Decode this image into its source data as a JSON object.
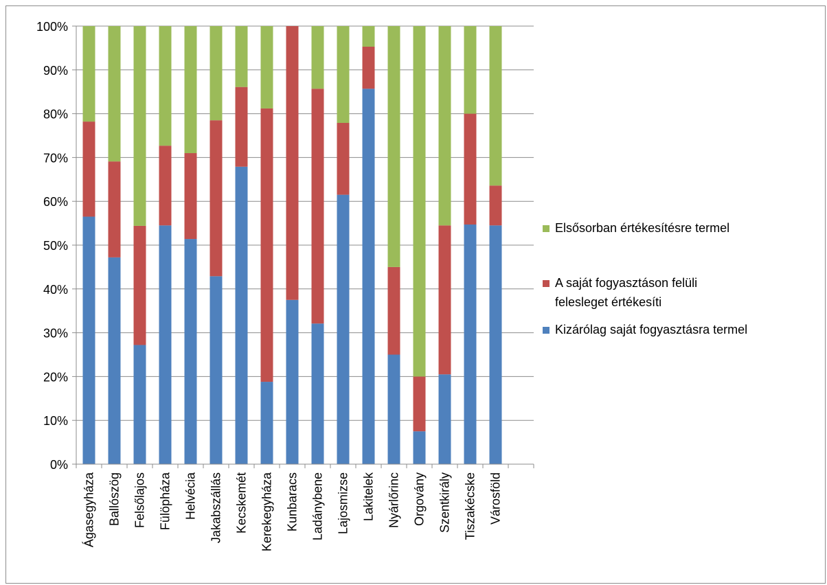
{
  "chart_data": {
    "type": "bar",
    "stacked": true,
    "percent": true,
    "categories": [
      "Ágasegyháza",
      "Ballószög",
      "Felsőlajos",
      "Fülöpháza",
      "Helvécia",
      "Jakabszállás",
      "Kecskemét",
      "Kerekegyháza",
      "Kunbaracs",
      "Ladánybene",
      "Lajosmizse",
      "Lakitelek",
      "Nyárlőrinc",
      "Orgovány",
      "Szentkirály",
      "Tiszakécske",
      "Városföld"
    ],
    "series": [
      {
        "name": "Kizárólag saját fogyasztásra termel",
        "color": "#4f81bd",
        "values": [
          56.5,
          47.2,
          27.2,
          54.5,
          51.4,
          42.9,
          67.9,
          18.8,
          37.5,
          32.1,
          61.5,
          85.7,
          25.0,
          7.5,
          20.5,
          54.7,
          54.5
        ]
      },
      {
        "name": "A saját fogyasztáson felüli felesleget értékesíti",
        "color": "#c0504d",
        "values": [
          21.7,
          21.9,
          27.2,
          18.2,
          19.6,
          35.6,
          18.2,
          62.4,
          62.5,
          53.6,
          16.4,
          9.6,
          20.0,
          12.5,
          34.0,
          25.3,
          9.1
        ]
      },
      {
        "name": "Elsősorban értékesítésre termel",
        "color": "#9bbb59",
        "values": [
          21.8,
          30.9,
          45.6,
          27.3,
          29.0,
          21.5,
          13.9,
          18.8,
          0.0,
          14.3,
          22.1,
          4.7,
          55.0,
          80.0,
          45.5,
          20.0,
          36.4
        ]
      }
    ],
    "ylim": [
      0,
      100
    ],
    "yticks": [
      "0%",
      "10%",
      "20%",
      "30%",
      "40%",
      "50%",
      "60%",
      "70%",
      "80%",
      "90%",
      "100%"
    ],
    "grid": true,
    "legend_position": "right"
  },
  "legend": {
    "items": [
      {
        "label": "Elsősorban értékesítésre termel",
        "color": "#9bbb59"
      },
      {
        "label": "A saját fogyasztáson felüli felesleget értékesíti",
        "color": "#c0504d"
      },
      {
        "label": "Kizárólag saját fogyasztásra termel",
        "color": "#4f81bd"
      }
    ]
  }
}
